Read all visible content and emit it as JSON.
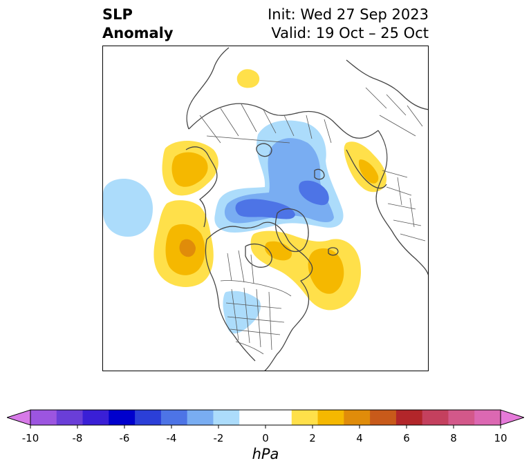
{
  "title": {
    "left_line1": "SLP",
    "left_line2": "Anomaly",
    "right_line1": "Init: Wed 27 Sep 2023",
    "right_line2": "Valid: 19 Oct – 25 Oct"
  },
  "colorbar": {
    "unit": "hPa",
    "ticks": [
      "-10",
      "-8",
      "-6",
      "-4",
      "-2",
      "0",
      "2",
      "4",
      "6",
      "8",
      "10"
    ],
    "colors": [
      "#d77ae8",
      "#9c55e0",
      "#6a3ed8",
      "#3a1fd6",
      "#0000cd",
      "#2b3fd8",
      "#4d74e6",
      "#79adf2",
      "#acdcfb",
      "#ffffff",
      "#ffffff",
      "#ffe04a",
      "#f5b800",
      "#e08c0a",
      "#c85a1a",
      "#b2262a",
      "#c4405e",
      "#d3588a",
      "#dc68b2",
      "#e57ad9"
    ]
  },
  "map": {
    "region": "Northern Hemisphere polar stereographic",
    "colors": {
      "neg1": "#acdcfb",
      "neg2": "#79adf2",
      "neg3": "#4d74e6",
      "pos1": "#ffe04a",
      "pos2": "#f5b800",
      "pos3": "#e08c0a"
    }
  }
}
